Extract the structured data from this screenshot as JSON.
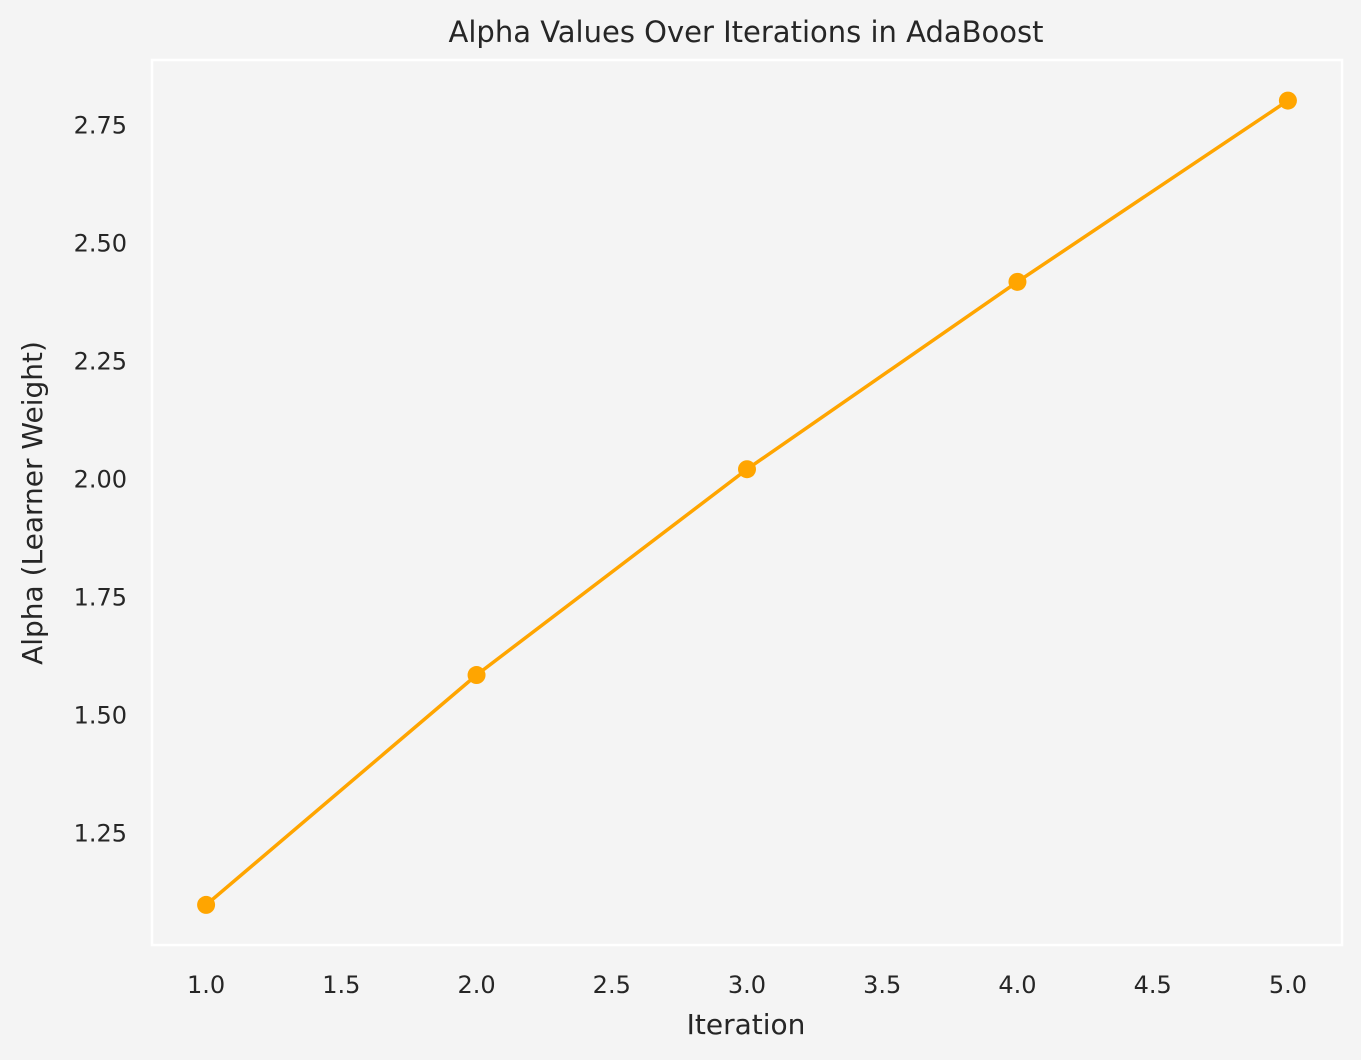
{
  "chart_data": {
    "type": "line",
    "title": "Alpha Values Over Iterations in AdaBoost",
    "xlabel": "Iteration",
    "ylabel": "Alpha (Learner Weight)",
    "x": [
      1,
      2,
      3,
      4,
      5
    ],
    "series": [
      {
        "values": [
          1.099,
          1.586,
          2.022,
          2.419,
          2.803
        ],
        "color": "#ffa500",
        "marker": "circle"
      }
    ],
    "xlim": [
      0.8,
      5.2
    ],
    "ylim": [
      1.014,
      2.889
    ],
    "xticks": [
      {
        "value": 1.0,
        "label": "1.0"
      },
      {
        "value": 1.5,
        "label": "1.5"
      },
      {
        "value": 2.0,
        "label": "2.0"
      },
      {
        "value": 2.5,
        "label": "2.5"
      },
      {
        "value": 3.0,
        "label": "3.0"
      },
      {
        "value": 3.5,
        "label": "3.5"
      },
      {
        "value": 4.0,
        "label": "4.0"
      },
      {
        "value": 4.5,
        "label": "4.5"
      },
      {
        "value": 5.0,
        "label": "5.0"
      }
    ],
    "yticks": [
      {
        "value": 1.25,
        "label": "1.25"
      },
      {
        "value": 1.5,
        "label": "1.50"
      },
      {
        "value": 1.75,
        "label": "1.75"
      },
      {
        "value": 2.0,
        "label": "2.00"
      },
      {
        "value": 2.25,
        "label": "2.25"
      },
      {
        "value": 2.5,
        "label": "2.50"
      },
      {
        "value": 2.75,
        "label": "2.75"
      }
    ],
    "grid": false,
    "background": "#f4f4f4",
    "plot_border_color": "#ffffff"
  }
}
